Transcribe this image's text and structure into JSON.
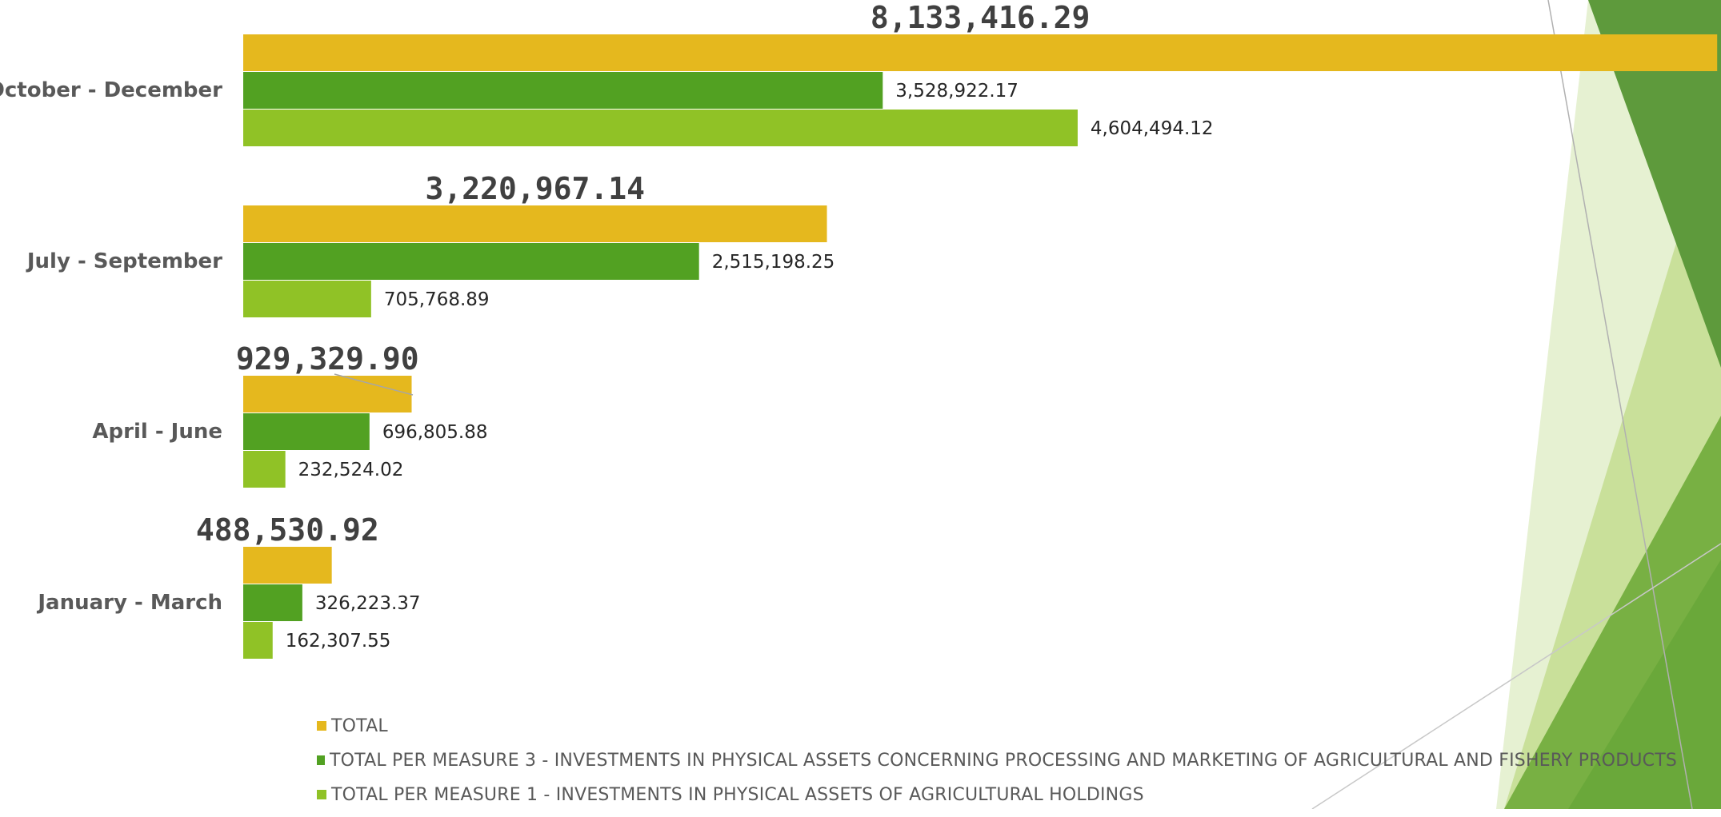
{
  "chart_data": {
    "type": "bar",
    "orientation": "horizontal",
    "categories": [
      "October - December",
      "July - September",
      "April - June",
      "January - March"
    ],
    "series": [
      {
        "name": "TOTAL",
        "color": "#E5B81E",
        "values": [
          8133416.29,
          3220967.14,
          929329.9,
          488530.92
        ]
      },
      {
        "name": "TOTAL PER MEASURE 3 - INVESTMENTS IN PHYSICAL ASSETS CONCERNING PROCESSING AND MARKETING OF AGRICULTURAL AND FISHERY PRODUCTS",
        "color": "#52A122",
        "values": [
          3528922.17,
          2515198.25,
          696805.88,
          326223.37
        ]
      },
      {
        "name": "TOTAL PER MEASURE 1 - INVESTMENTS IN PHYSICAL ASSETS OF AGRICULTURAL HOLDINGS",
        "color": "#90C226",
        "values": [
          4604494.12,
          705768.89,
          232524.02,
          162307.55
        ]
      }
    ],
    "data_labels": {
      "TOTAL": [
        "8,133,416.29",
        "3,220,967.14",
        "929,329.90",
        "488,530.92"
      ],
      "TOTAL PER MEASURE 3 - INVESTMENTS IN PHYSICAL ASSETS CONCERNING PROCESSING AND MARKETING OF AGRICULTURAL AND FISHERY PRODUCTS": [
        "3,528,922.17",
        "2,515,198.25",
        "696,805.88",
        "326,223.37"
      ],
      "TOTAL PER MEASURE 1 - INVESTMENTS IN PHYSICAL ASSETS OF AGRICULTURAL HOLDINGS": [
        "4,604,494.12",
        "705,768.89",
        "232,524.02",
        "162,307.55"
      ]
    },
    "grid": false,
    "legend_position": "bottom"
  },
  "legend": {
    "items": [
      {
        "label": "TOTAL",
        "color": "#E5B81E"
      },
      {
        "label": "TOTAL PER MEASURE 3 - INVESTMENTS IN PHYSICAL ASSETS CONCERNING PROCESSING AND MARKETING OF AGRICULTURAL AND FISHERY PRODUCTS",
        "color": "#52A122"
      },
      {
        "label": "TOTAL PER MEASURE 1 - INVESTMENTS IN PHYSICAL ASSETS OF AGRICULTURAL HOLDINGS",
        "color": "#90C226"
      }
    ]
  },
  "theme": {
    "background": "#FFFFFF",
    "decor_dark_green": "#549E39",
    "decor_mid_green": "#8AB833",
    "decor_light_green": "#C0CF3A"
  }
}
